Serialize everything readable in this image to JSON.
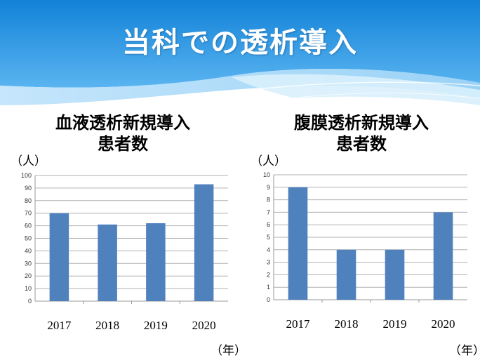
{
  "slide": {
    "title": "当科での透析導入"
  },
  "colors": {
    "bar": "#4f81bd",
    "header": "#1a8fe0"
  },
  "chart_data": [
    {
      "type": "bar",
      "title": "血液透析新規導入\n患者数",
      "title_lines": [
        "血液透析新規導入",
        "患者数"
      ],
      "ylabel": "（人）",
      "xlabel": "（年）",
      "categories": [
        "2017",
        "2018",
        "2019",
        "2020"
      ],
      "values": [
        70,
        61,
        62,
        93
      ],
      "ylim": [
        0,
        100
      ],
      "yticks": [
        "0",
        "10",
        "20",
        "30",
        "40",
        "50",
        "60",
        "70",
        "80",
        "90",
        "100"
      ],
      "grid": true
    },
    {
      "type": "bar",
      "title": "腹膜透析新規導入\n患者数",
      "title_lines": [
        "腹膜透析新規導入",
        "患者数"
      ],
      "ylabel": "（人）",
      "xlabel": "（年）",
      "categories": [
        "2017",
        "2018",
        "2019",
        "2020"
      ],
      "values": [
        9,
        4,
        4,
        7
      ],
      "ylim": [
        0,
        10
      ],
      "yticks": [
        "0",
        "1",
        "2",
        "3",
        "4",
        "5",
        "6",
        "7",
        "8",
        "9",
        "10"
      ],
      "grid": true
    }
  ]
}
